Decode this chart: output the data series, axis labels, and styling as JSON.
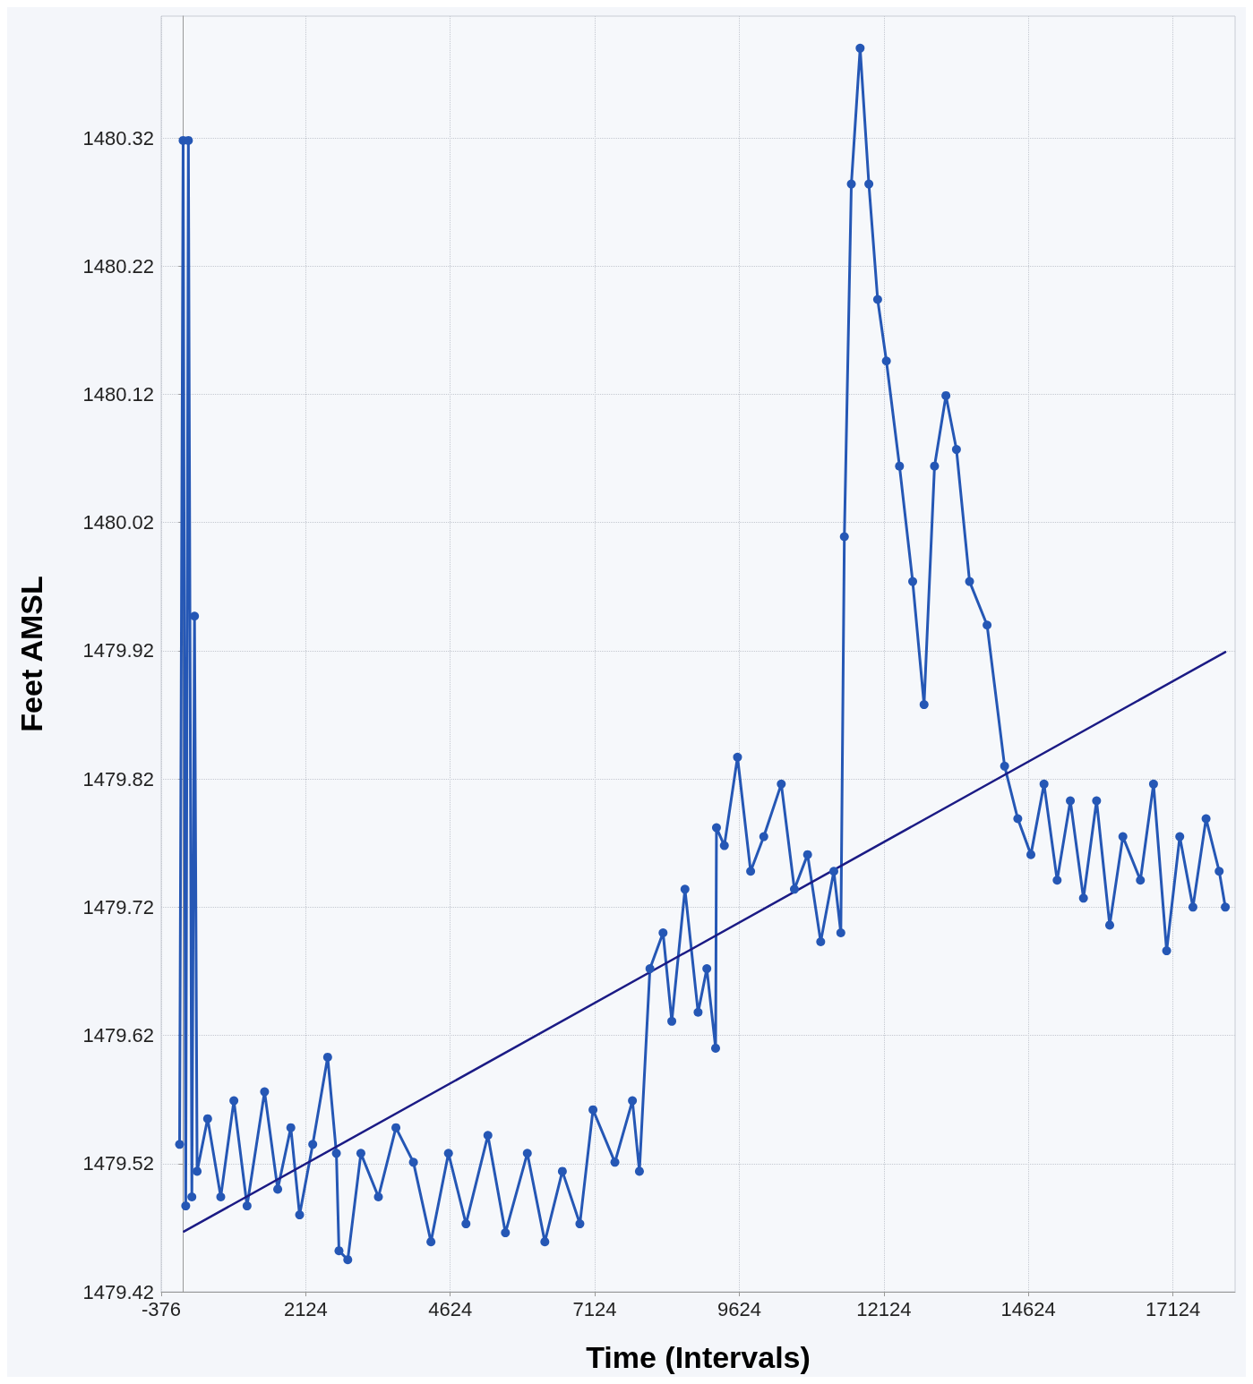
{
  "chart_data": {
    "type": "line",
    "xlabel": "Time (Intervals)",
    "ylabel": "Feet AMSL",
    "xlim": [
      -376,
      18200
    ],
    "xticks": [
      -376,
      2124,
      4624,
      7124,
      9624,
      12124,
      14624,
      17124
    ],
    "ylim": [
      1479.42,
      1480.415
    ],
    "yticks": [
      1479.42,
      1479.52,
      1479.62,
      1479.72,
      1479.82,
      1479.92,
      1480.02,
      1480.12,
      1480.22,
      1480.32
    ],
    "grid": true,
    "marker": "circle",
    "line_style": "solid",
    "series": [
      {
        "color": "#2557b5",
        "x": [
          -58,
          3,
          48,
          94,
          154,
          200,
          245,
          427,
          654,
          881,
          1109,
          1412,
          1639,
          1866,
          2018,
          2245,
          2503,
          2654,
          2699,
          2851,
          3078,
          3381,
          3684,
          3987,
          4290,
          4593,
          4896,
          5275,
          5578,
          5957,
          6260,
          6563,
          6866,
          7093,
          7472,
          7775,
          7896,
          8078,
          8305,
          8456,
          8684,
          8911,
          9062,
          9214,
          9229,
          9365,
          9593,
          9820,
          10047,
          10350,
          10577,
          10805,
          11032,
          11259,
          11380,
          11441,
          11562,
          11714,
          11865,
          12017,
          12168,
          12395,
          12623,
          12820,
          13001,
          13198,
          13380,
          13607,
          13910,
          14213,
          14441,
          14668,
          14895,
          15122,
          15350,
          15577,
          15804,
          16031,
          16259,
          16562,
          16789,
          17016,
          17243,
          17471,
          17698,
          17925,
          18031
        ],
        "values": [
          1479.535,
          1480.318,
          1479.487,
          1480.318,
          1479.494,
          1479.947,
          1479.514,
          1479.555,
          1479.494,
          1479.569,
          1479.487,
          1479.576,
          1479.5,
          1479.548,
          1479.48,
          1479.535,
          1479.603,
          1479.528,
          1479.452,
          1479.445,
          1479.528,
          1479.494,
          1479.548,
          1479.521,
          1479.459,
          1479.528,
          1479.473,
          1479.542,
          1479.466,
          1479.528,
          1479.459,
          1479.514,
          1479.473,
          1479.562,
          1479.521,
          1479.569,
          1479.514,
          1479.672,
          1479.7,
          1479.631,
          1479.734,
          1479.638,
          1479.672,
          1479.61,
          1479.782,
          1479.768,
          1479.837,
          1479.748,
          1479.775,
          1479.816,
          1479.734,
          1479.761,
          1479.693,
          1479.748,
          1479.7,
          1480.009,
          1480.284,
          1480.39,
          1480.284,
          1480.194,
          1480.146,
          1480.064,
          1479.974,
          1479.878,
          1480.064,
          1480.119,
          1480.077,
          1479.974,
          1479.94,
          1479.83,
          1479.789,
          1479.761,
          1479.816,
          1479.741,
          1479.803,
          1479.727,
          1479.803,
          1479.706,
          1479.775,
          1479.741,
          1479.816,
          1479.686,
          1479.775,
          1479.72,
          1479.789,
          1479.748,
          1479.72
        ]
      },
      {
        "color": "#1b1b85",
        "marker": "none",
        "x": [
          18,
          18031
        ],
        "values": [
          1479.467,
          1479.919
        ]
      }
    ]
  }
}
